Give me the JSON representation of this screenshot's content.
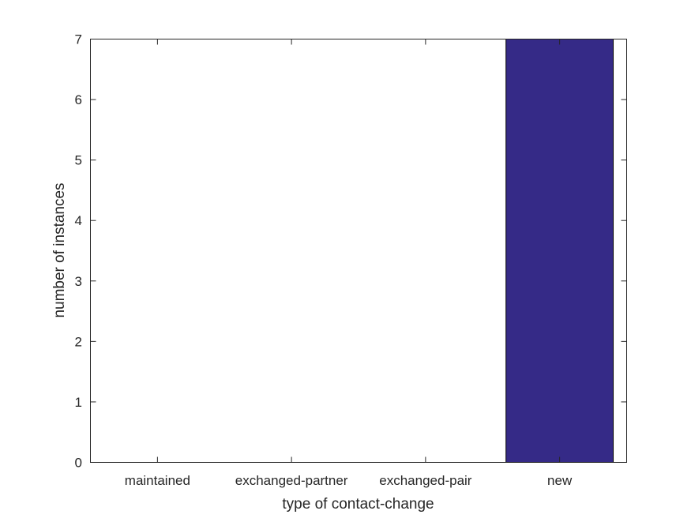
{
  "chart_data": {
    "type": "bar",
    "categories": [
      "maintained",
      "exchanged-partner",
      "exchanged-pair",
      "new"
    ],
    "values": [
      0,
      0,
      0,
      7
    ],
    "title": "",
    "xlabel": "type of contact-change",
    "ylabel": "number of instances",
    "ylim": [
      0,
      7
    ],
    "yticks": [
      0,
      1,
      2,
      3,
      4,
      5,
      6,
      7
    ],
    "grid": false,
    "bar_color": "#352a87",
    "axis_color": "#262626"
  }
}
